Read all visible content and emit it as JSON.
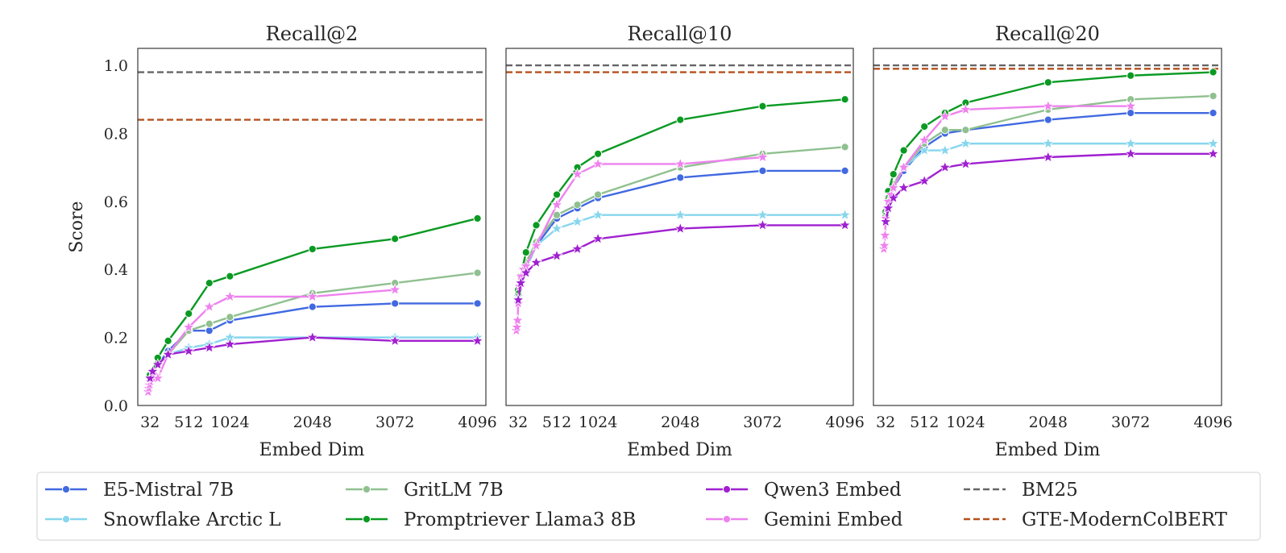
{
  "chart_data": {
    "type": "line",
    "ylabel": "Score",
    "xlabel": "Embed Dim",
    "ylim": [
      0,
      1.05
    ],
    "yticks": [
      0.0,
      0.2,
      0.4,
      0.6,
      0.8,
      1.0
    ],
    "ytick_labels": [
      "0.0",
      "0.2",
      "0.4",
      "0.6",
      "0.8",
      "1.0"
    ],
    "xlim": [
      -120,
      4200
    ],
    "xticks": [
      32,
      512,
      1024,
      2048,
      3072,
      4096
    ],
    "xtick_labels": [
      "32",
      "512",
      "1024",
      "2048",
      "3072",
      "4096"
    ],
    "grid": false,
    "legend_placement": "bottom",
    "series_styles": [
      {
        "name": "E5-Mistral 7B",
        "color": "#4169e1",
        "marker": "circle",
        "dash": "solid"
      },
      {
        "name": "Snowflake Arctic L",
        "color": "#87d6ed",
        "marker": "star",
        "dash": "solid"
      },
      {
        "name": "GritLM 7B",
        "color": "#8fc08f",
        "marker": "circle",
        "dash": "solid"
      },
      {
        "name": "Promptriever Llama3 8B",
        "color": "#0a9a22",
        "marker": "circle",
        "dash": "solid"
      },
      {
        "name": "Qwen3 Embed",
        "color": "#a020d0",
        "marker": "star",
        "dash": "solid"
      },
      {
        "name": "Gemini Embed",
        "color": "#ee82ee",
        "marker": "star",
        "dash": "solid"
      },
      {
        "name": "BM25",
        "color": "#666666",
        "marker": "none",
        "dash": "dashed"
      },
      {
        "name": "GTE-ModernColBERT",
        "color": "#b5501e",
        "marker": "none",
        "dash": "dashed"
      }
    ],
    "panels": [
      {
        "title": "Recall@2",
        "show_ylabel": true,
        "hlines": {
          "BM25": 0.98,
          "GTE-ModernColBERT": 0.84
        },
        "series": {
          "E5-Mistral 7B": {
            "x": [
              32,
              64,
              128,
              256,
              512,
              768,
              1024,
              2048,
              3072,
              4096
            ],
            "y": [
              0.09,
              0.1,
              0.12,
              0.16,
              0.22,
              0.22,
              0.25,
              0.29,
              0.3,
              0.3
            ]
          },
          "Snowflake Arctic L": {
            "x": [
              32,
              64,
              128,
              256,
              512,
              768,
              1024,
              2048,
              3072,
              4096
            ],
            "y": [
              0.09,
              0.1,
              0.12,
              0.15,
              0.17,
              0.18,
              0.2,
              0.2,
              0.2,
              0.2
            ]
          },
          "GritLM 7B": {
            "x": [
              32,
              64,
              128,
              256,
              512,
              768,
              1024,
              2048,
              3072,
              4096
            ],
            "y": [
              0.09,
              0.1,
              0.12,
              0.15,
              0.22,
              0.24,
              0.26,
              0.33,
              0.36,
              0.39
            ]
          },
          "Promptriever Llama3 8B": {
            "x": [
              32,
              64,
              128,
              256,
              512,
              768,
              1024,
              2048,
              3072,
              4096
            ],
            "y": [
              0.09,
              0.1,
              0.14,
              0.19,
              0.27,
              0.36,
              0.38,
              0.46,
              0.49,
              0.55
            ]
          },
          "Qwen3 Embed": {
            "x": [
              32,
              64,
              128,
              256,
              512,
              768,
              1024,
              2048,
              3072,
              4096
            ],
            "y": [
              0.08,
              0.1,
              0.12,
              0.15,
              0.16,
              0.17,
              0.18,
              0.2,
              0.19,
              0.19
            ]
          },
          "Gemini Embed": {
            "x": [
              8,
              16,
              24,
              32,
              48,
              64,
              96,
              128,
              256,
              512,
              768,
              1024,
              2048,
              3072
            ],
            "y": [
              0.04,
              0.05,
              0.06,
              0.07,
              0.08,
              0.08,
              0.09,
              0.08,
              0.15,
              0.23,
              0.29,
              0.32,
              0.32,
              0.34
            ]
          }
        }
      },
      {
        "title": "Recall@10",
        "show_ylabel": false,
        "hlines": {
          "BM25": 1.0,
          "GTE-ModernColBERT": 0.98
        },
        "series": {
          "E5-Mistral 7B": {
            "x": [
              32,
              64,
              128,
              256,
              512,
              768,
              1024,
              2048,
              3072,
              4096
            ],
            "y": [
              0.33,
              0.37,
              0.42,
              0.47,
              0.55,
              0.58,
              0.61,
              0.67,
              0.69,
              0.69
            ]
          },
          "Snowflake Arctic L": {
            "x": [
              32,
              64,
              128,
              256,
              512,
              768,
              1024,
              2048,
              3072,
              4096
            ],
            "y": [
              0.32,
              0.36,
              0.4,
              0.47,
              0.52,
              0.54,
              0.56,
              0.56,
              0.56,
              0.56
            ]
          },
          "GritLM 7B": {
            "x": [
              32,
              64,
              128,
              256,
              512,
              768,
              1024,
              2048,
              3072,
              4096
            ],
            "y": [
              0.33,
              0.37,
              0.42,
              0.48,
              0.56,
              0.59,
              0.62,
              0.7,
              0.74,
              0.76
            ]
          },
          "Promptriever Llama3 8B": {
            "x": [
              32,
              64,
              128,
              256,
              512,
              768,
              1024,
              2048,
              3072,
              4096
            ],
            "y": [
              0.34,
              0.38,
              0.45,
              0.53,
              0.62,
              0.7,
              0.74,
              0.84,
              0.88,
              0.9
            ]
          },
          "Qwen3 Embed": {
            "x": [
              32,
              64,
              128,
              256,
              512,
              768,
              1024,
              2048,
              3072,
              4096
            ],
            "y": [
              0.31,
              0.36,
              0.39,
              0.42,
              0.44,
              0.46,
              0.49,
              0.52,
              0.53,
              0.53
            ]
          },
          "Gemini Embed": {
            "x": [
              8,
              16,
              24,
              32,
              48,
              64,
              96,
              128,
              256,
              512,
              768,
              1024,
              2048,
              3072
            ],
            "y": [
              0.22,
              0.23,
              0.25,
              0.3,
              0.35,
              0.38,
              0.4,
              0.41,
              0.47,
              0.59,
              0.68,
              0.71,
              0.71,
              0.73
            ]
          }
        }
      },
      {
        "title": "Recall@20",
        "show_ylabel": false,
        "hlines": {
          "BM25": 1.0,
          "GTE-ModernColBERT": 0.99
        },
        "series": {
          "E5-Mistral 7B": {
            "x": [
              32,
              64,
              128,
              256,
              512,
              768,
              1024,
              2048,
              3072,
              4096
            ],
            "y": [
              0.56,
              0.6,
              0.64,
              0.69,
              0.76,
              0.8,
              0.81,
              0.84,
              0.86,
              0.86
            ]
          },
          "Snowflake Arctic L": {
            "x": [
              32,
              64,
              128,
              256,
              512,
              768,
              1024,
              2048,
              3072,
              4096
            ],
            "y": [
              0.56,
              0.6,
              0.64,
              0.7,
              0.75,
              0.75,
              0.77,
              0.77,
              0.77,
              0.77
            ]
          },
          "GritLM 7B": {
            "x": [
              32,
              64,
              128,
              256,
              512,
              768,
              1024,
              2048,
              3072,
              4096
            ],
            "y": [
              0.56,
              0.61,
              0.65,
              0.7,
              0.77,
              0.81,
              0.81,
              0.87,
              0.9,
              0.91
            ]
          },
          "Promptriever Llama3 8B": {
            "x": [
              32,
              64,
              128,
              256,
              512,
              768,
              1024,
              2048,
              3072,
              4096
            ],
            "y": [
              0.57,
              0.63,
              0.68,
              0.75,
              0.82,
              0.86,
              0.89,
              0.95,
              0.97,
              0.98
            ]
          },
          "Qwen3 Embed": {
            "x": [
              32,
              64,
              128,
              256,
              512,
              768,
              1024,
              2048,
              3072,
              4096
            ],
            "y": [
              0.54,
              0.58,
              0.61,
              0.64,
              0.66,
              0.7,
              0.71,
              0.73,
              0.74,
              0.74
            ]
          },
          "Gemini Embed": {
            "x": [
              8,
              16,
              24,
              32,
              48,
              64,
              96,
              128,
              256,
              512,
              768,
              1024,
              2048,
              3072
            ],
            "y": [
              0.46,
              0.47,
              0.5,
              0.55,
              0.58,
              0.6,
              0.62,
              0.64,
              0.7,
              0.78,
              0.85,
              0.87,
              0.88,
              0.88
            ]
          }
        }
      }
    ]
  }
}
